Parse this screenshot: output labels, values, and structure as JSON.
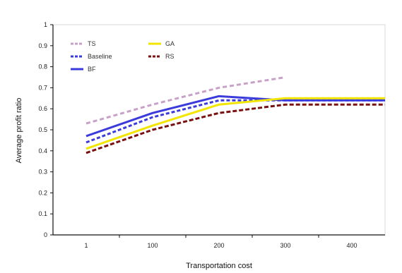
{
  "chart_data": {
    "type": "line",
    "title": "",
    "xlabel": "Transportation cost",
    "ylabel": "Average profit ratio",
    "x": [
      "1",
      "100",
      "200",
      "300",
      "400"
    ],
    "ylim": [
      0,
      1
    ],
    "yticks": [
      "0",
      "0.1",
      "0.2",
      "0.3",
      "0.4",
      "0.5",
      "0.6",
      "0.7",
      "0.8",
      "0.9",
      "1"
    ],
    "grid": false,
    "legend_position": "top-left",
    "series": [
      {
        "name": "TS",
        "color": "#c8a0c8",
        "dash": "6,4",
        "values": [
          0.53,
          0.62,
          0.7,
          0.75,
          null
        ]
      },
      {
        "name": "Baseline",
        "color": "#3b3bdc",
        "dash": "5,3",
        "values": [
          0.44,
          0.56,
          0.64,
          0.64,
          0.64
        ]
      },
      {
        "name": "BF",
        "color": "#3b3bdc",
        "dash": "",
        "values": [
          0.47,
          0.58,
          0.66,
          0.64,
          0.64
        ]
      },
      {
        "name": "GA",
        "color": "#f2e600",
        "dash": "",
        "values": [
          0.41,
          0.52,
          0.62,
          0.65,
          0.65
        ]
      },
      {
        "name": "RS",
        "color": "#7a1010",
        "dash": "6,3",
        "values": [
          0.39,
          0.5,
          0.58,
          0.62,
          0.62
        ]
      }
    ]
  }
}
